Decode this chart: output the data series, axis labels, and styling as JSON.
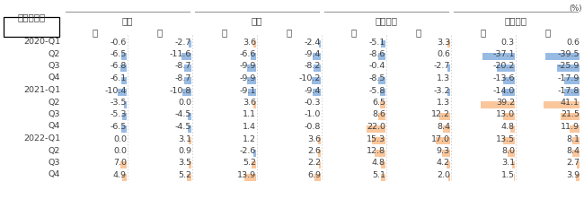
{
  "title_label": "宿泊・飲食",
  "pct_label": "(%)",
  "country_headers": [
    "日本",
    "韓国",
    "フランス",
    "アメリカ"
  ],
  "gender_m": "男",
  "gender_f": "女",
  "row_labels": [
    "2020-Q1",
    "Q2",
    "Q3",
    "Q4",
    "2021-Q1",
    "Q2",
    "Q3",
    "Q4",
    "2022-Q1",
    "Q2",
    "Q3",
    "Q4"
  ],
  "data": [
    [
      -0.6,
      -2.7,
      3.6,
      -2.4,
      -5.1,
      3.3,
      0.3,
      0.6
    ],
    [
      -6.5,
      -11.6,
      -6.6,
      -9.4,
      -8.6,
      0.6,
      -37.1,
      -39.5
    ],
    [
      -6.8,
      -8.7,
      -9.9,
      -8.2,
      -0.4,
      -2.7,
      -20.2,
      -25.9
    ],
    [
      -6.1,
      -8.7,
      -9.9,
      -10.2,
      -8.5,
      1.3,
      -13.6,
      -17.9
    ],
    [
      -10.4,
      -10.8,
      -9.1,
      -9.4,
      -5.8,
      -3.2,
      -14.0,
      -17.8
    ],
    [
      -3.5,
      0.0,
      3.6,
      -0.3,
      6.5,
      1.3,
      39.2,
      41.1
    ],
    [
      -5.3,
      -4.5,
      1.1,
      -1.0,
      8.6,
      12.2,
      13.0,
      21.5
    ],
    [
      -6.5,
      -4.5,
      1.4,
      -0.8,
      22.0,
      8.4,
      4.8,
      11.9
    ],
    [
      0.0,
      3.1,
      1.2,
      3.6,
      15.3,
      17.0,
      13.5,
      8.1
    ],
    [
      0.0,
      0.9,
      -2.6,
      2.6,
      12.8,
      9.3,
      8.0,
      8.4
    ],
    [
      7.0,
      3.5,
      5.2,
      2.2,
      4.8,
      4.2,
      3.1,
      2.7
    ],
    [
      4.9,
      5.2,
      13.9,
      6.9,
      5.1,
      2.0,
      1.5,
      3.9
    ]
  ],
  "blue_color": "#8DB4E2",
  "orange_color": "#FAC090",
  "text_color": "#404040",
  "header_color": "#404040",
  "bg_color": "#FFFFFF",
  "box_color": "#000000",
  "line_color": "#888888",
  "dashed_color": "#BBBBBB",
  "figw": 6.5,
  "figh": 2.41,
  "dpi": 100
}
